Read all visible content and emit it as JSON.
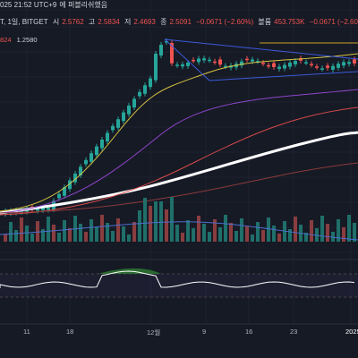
{
  "header": {
    "time": "025 21:52 UTC+9",
    "note": "에 퍼블리쉬했음",
    "line2_symbol": "T, 1일, BITGET",
    "o_label": "시",
    "o_value": "2.5762",
    "h_label": "고",
    "h_value": "2.5834",
    "l_label": "저",
    "l_value": "2.4693",
    "c_label": "종",
    "c_value": "2.5091",
    "chg": "−0.0671 (−2.60%)",
    "vol_label": "볼륨",
    "vol_value": "453.753K",
    "vol_chg": "−0.0671 (−2.60%)",
    "box_left": "824",
    "box_right": "1.2580"
  },
  "xaxis": {
    "ticks": [
      "11",
      "18",
      "12월",
      "9",
      "16",
      "23",
      "2025"
    ]
  },
  "colors": {
    "bg": "#161a25",
    "up": "#26a69a",
    "down": "#ef5350",
    "ma_white": "#ffffff",
    "ma_yellow": "#d6c341",
    "ma_purple": "#8e44c9",
    "ma_red": "#d44a4a",
    "channel": "#3b5bdb",
    "volume_ma": "#4a6fd1",
    "rsi_fill": "#2e7d32"
  }
}
